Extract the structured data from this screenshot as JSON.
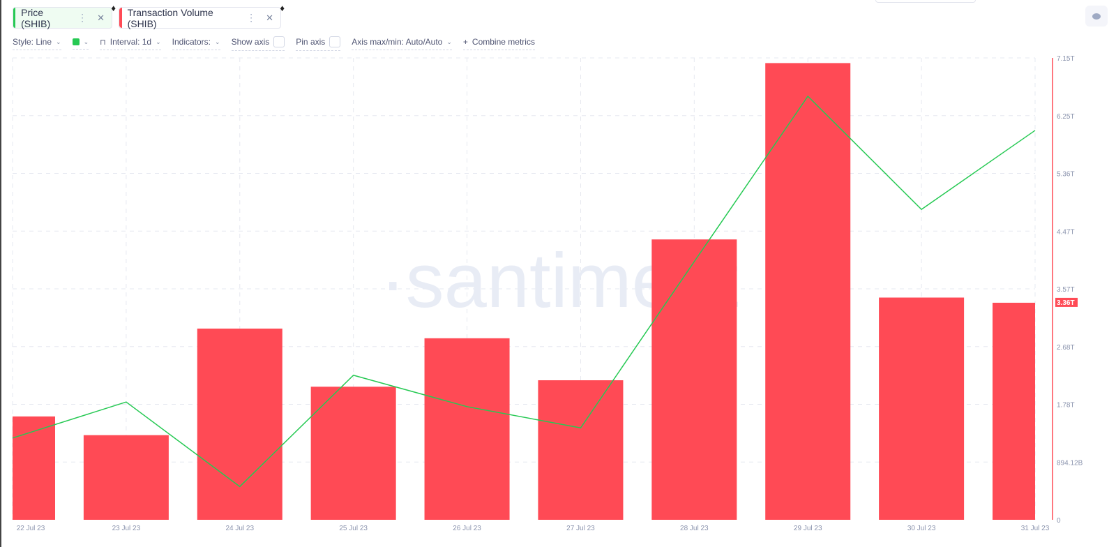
{
  "metrics": [
    {
      "label": "Price (SHIB)",
      "color": "#26c953",
      "bg": "#effcf2",
      "icon": "ethereum-icon"
    },
    {
      "label": "Transaction Volume (SHIB)",
      "color": "#ff4a55",
      "bg": "#ffffff",
      "icon": "ethereum-icon"
    }
  ],
  "toolbar": {
    "style": "Style: Line",
    "interval": "Interval: 1d",
    "indicators": "Indicators:",
    "show_axis": "Show axis",
    "pin_axis": "Pin axis",
    "axis_minmax": "Axis max/min: Auto/Auto",
    "combine": "Combine metrics"
  },
  "watermark": "·santiment",
  "chart_data": {
    "type": "bar",
    "categories": [
      "22 Jul 23",
      "23 Jul 23",
      "24 Jul 23",
      "25 Jul 23",
      "26 Jul 23",
      "27 Jul 23",
      "28 Jul 23",
      "29 Jul 23",
      "30 Jul 23",
      "31 Jul 23"
    ],
    "series": [
      {
        "name": "Transaction Volume (SHIB)",
        "type": "bar",
        "color": "#ff4a55",
        "values": [
          1600000000000.0,
          1310000000000.0,
          2960000000000.0,
          2060000000000.0,
          2810000000000.0,
          2160000000000.0,
          4340000000000.0,
          7070000000000.0,
          3440000000000.0,
          3360000000000.0
        ]
      },
      {
        "name": "Price (SHIB)",
        "type": "line",
        "color": "#26c953",
        "values": [
          7.377e-06,
          7.455e-06,
          7.272e-06,
          7.513e-06,
          7.445e-06,
          7.399e-06,
          7.759e-06,
          8.117e-06,
          7.872e-06,
          8.043e-06
        ],
        "ylim": [
          7.2e-06,
          8.2e-06
        ],
        "axis_visible": false
      }
    ],
    "yaxis": {
      "side": "right",
      "ticks": [
        "0",
        "894.12B",
        "1.78T",
        "2.68T",
        "3.57T",
        "4.47T",
        "5.36T",
        "6.25T",
        "7.15T"
      ],
      "ylim": [
        0,
        7150000000000.0
      ],
      "color": "#ff4a55"
    },
    "last_value_label": "3.36T",
    "grid": true
  }
}
